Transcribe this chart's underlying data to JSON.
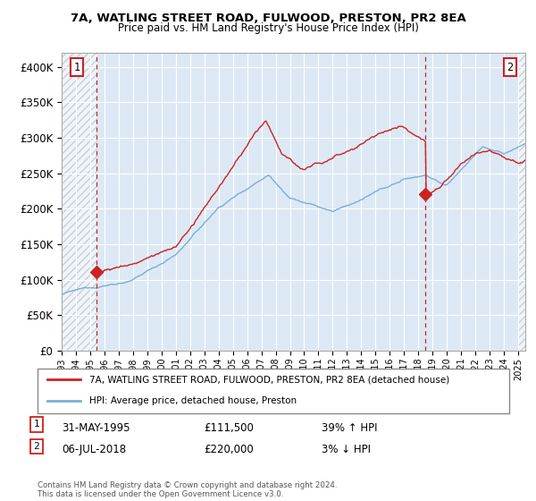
{
  "title": "7A, WATLING STREET ROAD, FULWOOD, PRESTON, PR2 8EA",
  "subtitle": "Price paid vs. HM Land Registry's House Price Index (HPI)",
  "ylim": [
    0,
    420000
  ],
  "yticks": [
    0,
    50000,
    100000,
    150000,
    200000,
    250000,
    300000,
    350000,
    400000
  ],
  "ytick_labels": [
    "£0",
    "£50K",
    "£100K",
    "£150K",
    "£200K",
    "£250K",
    "£300K",
    "£350K",
    "£400K"
  ],
  "hpi_color": "#7bafd4",
  "price_color": "#cc2222",
  "legend_line1": "7A, WATLING STREET ROAD, FULWOOD, PRESTON, PR2 8EA (detached house)",
  "legend_line2": "HPI: Average price, detached house, Preston",
  "sale1_date": "31-MAY-1995",
  "sale1_price": "£111,500",
  "sale1_hpi": "39% ↑ HPI",
  "sale2_date": "06-JUL-2018",
  "sale2_price": "£220,000",
  "sale2_hpi": "3% ↓ HPI",
  "footer": "Contains HM Land Registry data © Crown copyright and database right 2024.\nThis data is licensed under the Open Government Licence v3.0.",
  "sale1_x": 1995.42,
  "sale1_y": 111500,
  "sale2_x": 2018.51,
  "sale2_y": 220000,
  "xlim_left": 1993.0,
  "xlim_right": 2025.5,
  "plot_bg_color": "#dce9f5",
  "hatch_end": 1995.5
}
